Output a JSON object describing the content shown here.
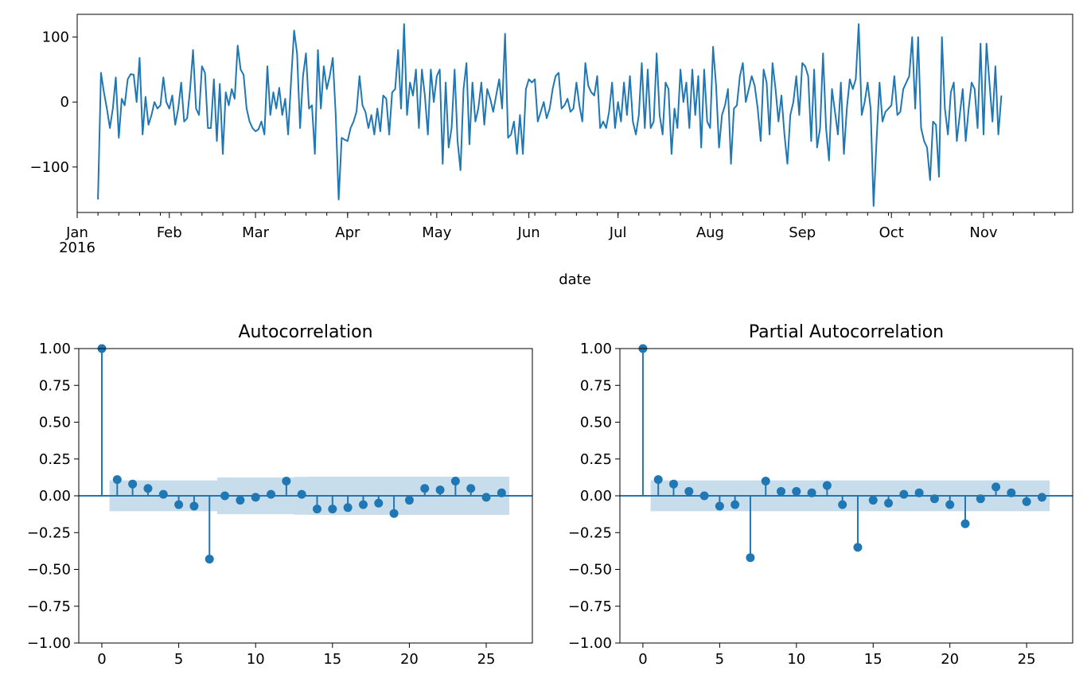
{
  "colors": {
    "series": "#1f77b4",
    "band": "#1f77b4"
  },
  "chart_data": [
    {
      "type": "line",
      "title": "",
      "xlabel": "date",
      "ylabel": "",
      "x_tick_labels": [
        "Jan\n2016",
        "Feb",
        "Mar",
        "Apr",
        "May",
        "Jun",
        "Jul",
        "Aug",
        "Sep",
        "Oct",
        "Nov"
      ],
      "y_ticks": [
        100,
        0,
        -100
      ],
      "y_tick_labels": [
        "100",
        "0",
        "−100"
      ],
      "ylim": [
        -170,
        135
      ],
      "xlim": [
        "2016-01-01",
        "2016-12-01"
      ],
      "series": [
        {
          "start_date": "2016-01-08",
          "frequency": "daily",
          "values": [
            -150,
            45,
            15,
            -10,
            -40,
            -10,
            38,
            -55,
            5,
            -5,
            35,
            43,
            42,
            0,
            68,
            -50,
            8,
            -35,
            -20,
            0,
            -10,
            -5,
            38,
            0,
            -10,
            10,
            -35,
            -10,
            30,
            -30,
            -25,
            20,
            80,
            -10,
            -20,
            55,
            45,
            -40,
            -40,
            35,
            -60,
            28,
            -80,
            15,
            -5,
            20,
            5,
            87,
            50,
            42,
            -10,
            -30,
            -40,
            -45,
            -42,
            -30,
            -50,
            55,
            -20,
            15,
            -10,
            22,
            -20,
            5,
            -50,
            35,
            110,
            75,
            -40,
            40,
            75,
            -10,
            -5,
            -80,
            80,
            -10,
            55,
            20,
            40,
            68,
            -20,
            -150,
            -55,
            -58,
            -60,
            -40,
            -30,
            -15,
            40,
            -5,
            -15,
            -40,
            -20,
            -50,
            -10,
            -45,
            10,
            5,
            -50,
            15,
            20,
            80,
            -10,
            120,
            -20,
            30,
            10,
            50,
            -40,
            50,
            10,
            -50,
            50,
            0,
            40,
            50,
            -95,
            30,
            -70,
            -40,
            50,
            -60,
            -105,
            20,
            60,
            -65,
            30,
            -30,
            -10,
            30,
            -35,
            20,
            5,
            -15,
            10,
            35,
            -10,
            105,
            -55,
            -50,
            -30,
            -80,
            -20,
            -80,
            20,
            35,
            30,
            35,
            -30,
            -15,
            0,
            -25,
            -10,
            20,
            40,
            45,
            -10,
            -5,
            5,
            -15,
            -10,
            30,
            -5,
            -30,
            60,
            25,
            15,
            10,
            40,
            -40,
            -30,
            -40,
            -15,
            30,
            -40,
            0,
            -30,
            30,
            -20,
            40,
            -30,
            -50,
            -20,
            60,
            -40,
            50,
            -40,
            -30,
            75,
            -20,
            -50,
            30,
            20,
            -80,
            -10,
            -40,
            50,
            0,
            30,
            -40,
            50,
            -20,
            40,
            -70,
            50,
            -30,
            -40,
            85,
            25,
            -70,
            -20,
            -5,
            20,
            -95,
            -10,
            -5,
            40,
            60,
            0,
            20,
            40,
            25,
            -10,
            -60,
            50,
            30,
            -50,
            60,
            20,
            -30,
            10,
            -50,
            -95,
            -20,
            0,
            40,
            -20,
            60,
            55,
            40,
            -60,
            50,
            -70,
            -40,
            75,
            -40,
            -90,
            20,
            -15,
            -50,
            30,
            -80,
            -10,
            35,
            20,
            35,
            120,
            -20,
            0,
            30,
            -10,
            -160,
            -60,
            30,
            -30,
            -15,
            -10,
            -5,
            40,
            -20,
            -15,
            20,
            30,
            40,
            100,
            -10,
            100,
            -40,
            -60,
            -70,
            -120,
            -30,
            -35,
            -115,
            100,
            -10,
            -50,
            15,
            30,
            -60,
            -20,
            20,
            -60,
            -10,
            30,
            20,
            -40,
            90,
            -50,
            90,
            30,
            -30,
            55,
            -50,
            10
          ]
        }
      ]
    },
    {
      "type": "stem",
      "title": "Autocorrelation",
      "xlabel": "",
      "ylabel": "",
      "xlim": [
        -1.5,
        28
      ],
      "ylim": [
        -1.0,
        1.0
      ],
      "x_ticks": [
        0,
        5,
        10,
        15,
        20,
        25
      ],
      "x_tick_labels": [
        "0",
        "5",
        "10",
        "15",
        "20",
        "25"
      ],
      "y_ticks": [
        1.0,
        0.75,
        0.5,
        0.25,
        0.0,
        -0.25,
        -0.5,
        -0.75,
        -1.0
      ],
      "y_tick_labels": [
        "1.00",
        "0.75",
        "0.50",
        "0.25",
        "0.00",
        "−0.25",
        "−0.50",
        "−0.75",
        "−1.00"
      ],
      "lags": [
        0,
        1,
        2,
        3,
        4,
        5,
        6,
        7,
        8,
        9,
        10,
        11,
        12,
        13,
        14,
        15,
        16,
        17,
        18,
        19,
        20,
        21,
        22,
        23,
        24,
        25,
        26
      ],
      "values": [
        1.0,
        0.11,
        0.08,
        0.05,
        0.01,
        -0.06,
        -0.07,
        -0.43,
        0.0,
        -0.03,
        -0.01,
        0.01,
        0.1,
        0.01,
        -0.09,
        -0.09,
        -0.08,
        -0.06,
        -0.05,
        -0.12,
        -0.03,
        0.05,
        0.04,
        0.1,
        0.05,
        -0.01,
        0.02
      ],
      "confidence_band": [
        0.105,
        0.105,
        0.105,
        0.105,
        0.105,
        0.105,
        0.105,
        0.105,
        0.125,
        0.125,
        0.125,
        0.125,
        0.125,
        0.128,
        0.13,
        0.13,
        0.13,
        0.13,
        0.13,
        0.13,
        0.13,
        0.13,
        0.13,
        0.13,
        0.13,
        0.13,
        0.13
      ]
    },
    {
      "type": "stem",
      "title": "Partial Autocorrelation",
      "xlabel": "",
      "ylabel": "",
      "xlim": [
        -1.5,
        28
      ],
      "ylim": [
        -1.0,
        1.0
      ],
      "x_ticks": [
        0,
        5,
        10,
        15,
        20,
        25
      ],
      "x_tick_labels": [
        "0",
        "5",
        "10",
        "15",
        "20",
        "25"
      ],
      "y_ticks": [
        1.0,
        0.75,
        0.5,
        0.25,
        0.0,
        -0.25,
        -0.5,
        -0.75,
        -1.0
      ],
      "y_tick_labels": [
        "1.00",
        "0.75",
        "0.50",
        "0.25",
        "0.00",
        "−0.25",
        "−0.50",
        "−0.75",
        "−1.00"
      ],
      "lags": [
        0,
        1,
        2,
        3,
        4,
        5,
        6,
        7,
        8,
        9,
        10,
        11,
        12,
        13,
        14,
        15,
        16,
        17,
        18,
        19,
        20,
        21,
        22,
        23,
        24,
        25,
        26
      ],
      "values": [
        1.0,
        0.11,
        0.08,
        0.03,
        0.0,
        -0.07,
        -0.06,
        -0.42,
        0.1,
        0.03,
        0.03,
        0.02,
        0.07,
        -0.06,
        -0.35,
        -0.03,
        -0.05,
        0.01,
        0.02,
        -0.02,
        -0.06,
        -0.19,
        -0.02,
        0.06,
        0.02,
        -0.04,
        -0.01
      ],
      "confidence_band": [
        0.105,
        0.105,
        0.105,
        0.105,
        0.105,
        0.105,
        0.105,
        0.105,
        0.105,
        0.105,
        0.105,
        0.105,
        0.105,
        0.105,
        0.105,
        0.105,
        0.105,
        0.105,
        0.105,
        0.105,
        0.105,
        0.105,
        0.105,
        0.105,
        0.105,
        0.105,
        0.105
      ]
    }
  ]
}
